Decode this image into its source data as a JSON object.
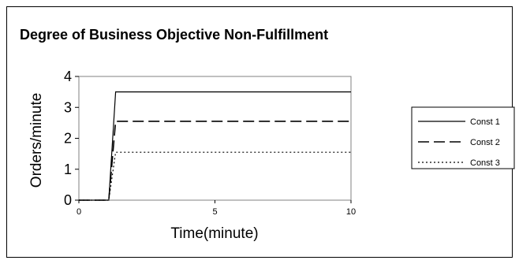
{
  "chart_data": {
    "type": "line",
    "title": "Degree of Business Objective Non-Fulfillment",
    "xlabel": "Time(minute)",
    "ylabel": "Orders/minute",
    "xlim": [
      0,
      10
    ],
    "ylim": [
      0,
      4
    ],
    "xticks": [
      0,
      5,
      10
    ],
    "yticks": [
      0,
      1,
      2,
      3,
      4
    ],
    "grid": false,
    "legend_position": "right",
    "series": [
      {
        "name": "Const 1",
        "style": "solid",
        "color": "#000000",
        "x": [
          0,
          1.1,
          1.35,
          10
        ],
        "y": [
          0,
          0,
          3.5,
          3.5
        ]
      },
      {
        "name": "Const 2",
        "style": "dashed",
        "color": "#000000",
        "x": [
          0,
          1.1,
          1.35,
          10
        ],
        "y": [
          0,
          0,
          2.55,
          2.55
        ]
      },
      {
        "name": "Const 3",
        "style": "dotted",
        "color": "#000000",
        "x": [
          0,
          1.1,
          1.35,
          10
        ],
        "y": [
          0,
          0,
          1.55,
          1.55
        ]
      }
    ]
  }
}
